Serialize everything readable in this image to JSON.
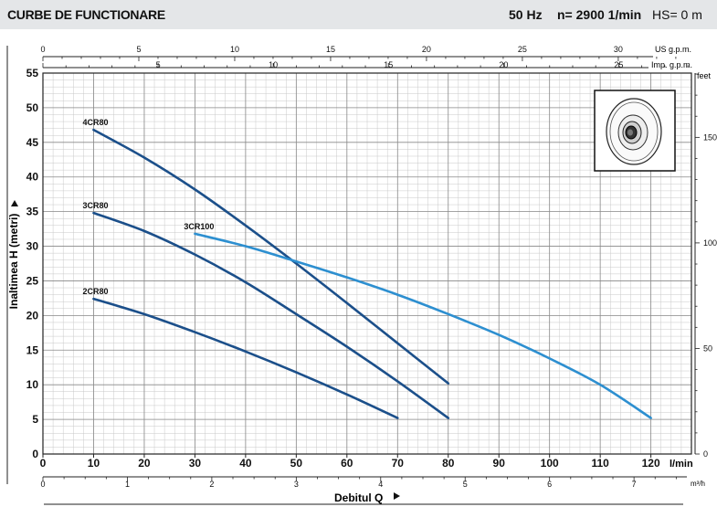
{
  "header": {
    "title": "CURBE DE FUNCTIONARE",
    "frequency": "50 Hz",
    "speed": "n= 2900  1/min",
    "hs": "HS= 0 m"
  },
  "axes": {
    "units_usgpm": "US g.p.m.",
    "units_impgpm": "Imp. g.p.m.",
    "units_feet": "feet",
    "units_lmin": "l/min",
    "units_m3h": "m³/h",
    "ylabel": "Inaltimea  H  (metri)",
    "xlabel": "Debitul  Q"
  },
  "chart_data": {
    "type": "line",
    "xlim": [
      0,
      128
    ],
    "ylim": [
      0,
      55
    ],
    "grid": true,
    "x_ticks": [
      0,
      10,
      20,
      30,
      40,
      50,
      60,
      70,
      80,
      90,
      100,
      110,
      120
    ],
    "y_ticks": [
      0,
      5,
      10,
      15,
      20,
      25,
      30,
      35,
      40,
      45,
      50,
      55
    ],
    "usgpm_ticks": [
      0,
      5,
      10,
      15,
      20,
      25,
      30
    ],
    "impgpm_ticks": [
      5,
      10,
      15,
      20,
      25
    ],
    "m3h_ticks": [
      0,
      1,
      2,
      3,
      4,
      5,
      6,
      7
    ],
    "feet_ticks": [
      0,
      50,
      100,
      150
    ],
    "series": [
      {
        "name": "4CR80",
        "color": "#1b4f8a",
        "x": [
          10,
          20,
          30,
          40,
          50,
          60,
          70,
          80
        ],
        "y": [
          46.8,
          42.8,
          38.2,
          33.0,
          27.5,
          21.8,
          16.0,
          10.2
        ]
      },
      {
        "name": "3CR80",
        "color": "#1b4f8a",
        "x": [
          10,
          20,
          30,
          40,
          50,
          60,
          70,
          80
        ],
        "y": [
          34.8,
          32.2,
          28.8,
          24.8,
          20.2,
          15.5,
          10.5,
          5.2
        ]
      },
      {
        "name": "2CR80",
        "color": "#1b4f8a",
        "x": [
          10,
          20,
          30,
          40,
          50,
          60,
          70
        ],
        "y": [
          22.4,
          20.2,
          17.6,
          14.8,
          11.8,
          8.6,
          5.2
        ]
      },
      {
        "name": "3CR100",
        "color": "#2d8fd0",
        "x": [
          30,
          40,
          50,
          60,
          70,
          80,
          90,
          100,
          110,
          120
        ],
        "y": [
          31.8,
          30.0,
          27.8,
          25.5,
          23.0,
          20.2,
          17.2,
          13.8,
          10.0,
          5.2
        ]
      }
    ]
  }
}
